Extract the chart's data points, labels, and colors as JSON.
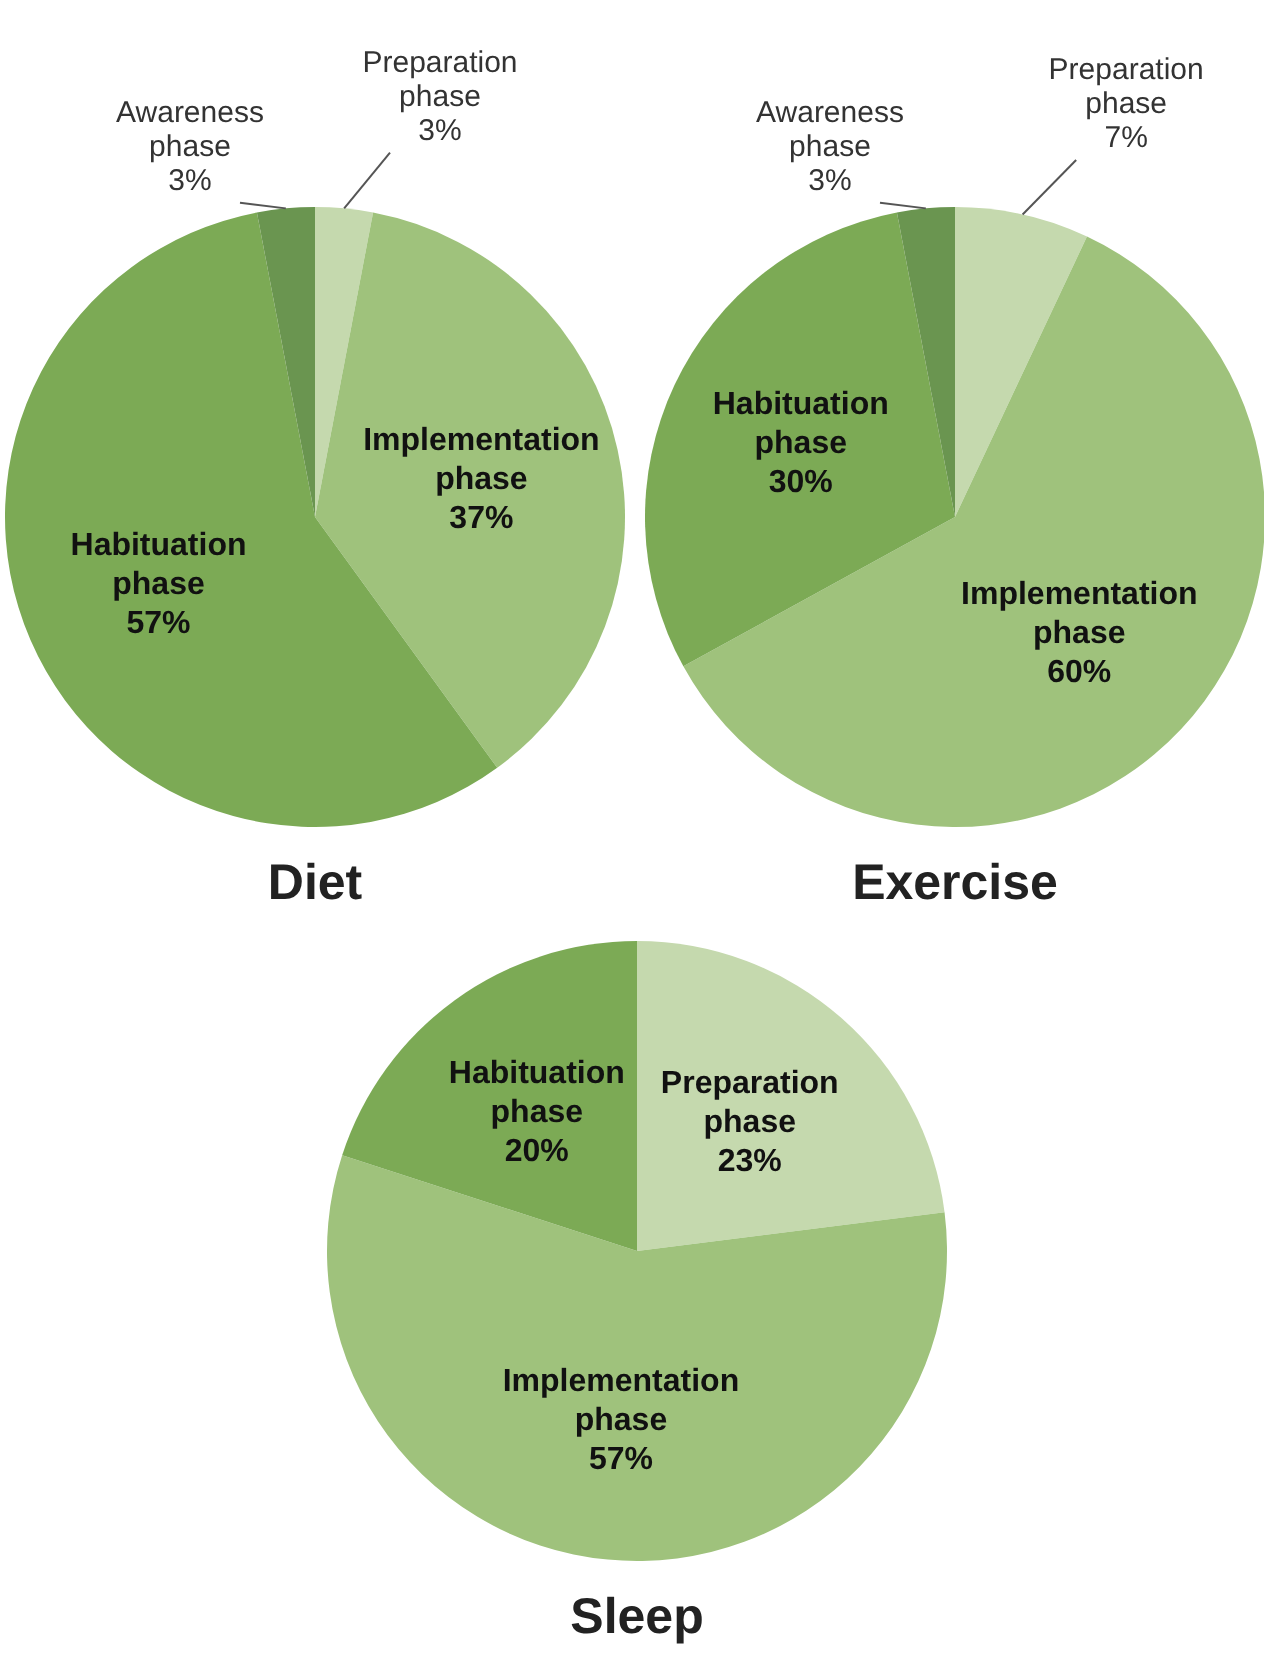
{
  "chart_data": [
    {
      "type": "pie",
      "title": "Diet",
      "categories": [
        "Preparation phase",
        "Implementation phase",
        "Habituation phase",
        "Awareness phase"
      ],
      "values": [
        3,
        37,
        57,
        3
      ],
      "value_labels": [
        "3%",
        "37%",
        "57%",
        "3%"
      ],
      "colors": [
        "#c5d9ae",
        "#9fc27c",
        "#7caa55",
        "#6a9550"
      ]
    },
    {
      "type": "pie",
      "title": "Exercise",
      "categories": [
        "Preparation phase",
        "Implementation phase",
        "Habituation phase",
        "Awareness phase"
      ],
      "values": [
        7,
        60,
        30,
        3
      ],
      "value_labels": [
        "7%",
        "60%",
        "30%",
        "3%"
      ],
      "colors": [
        "#c5d9ae",
        "#9fc27c",
        "#7caa55",
        "#6a9550"
      ]
    },
    {
      "type": "pie",
      "title": "Sleep",
      "categories": [
        "Preparation phase",
        "Implementation phase",
        "Habituation phase"
      ],
      "values": [
        23,
        57,
        20
      ],
      "value_labels": [
        "23%",
        "57%",
        "20%"
      ],
      "colors": [
        "#c5d9ae",
        "#9fc27c",
        "#7caa55"
      ]
    }
  ]
}
